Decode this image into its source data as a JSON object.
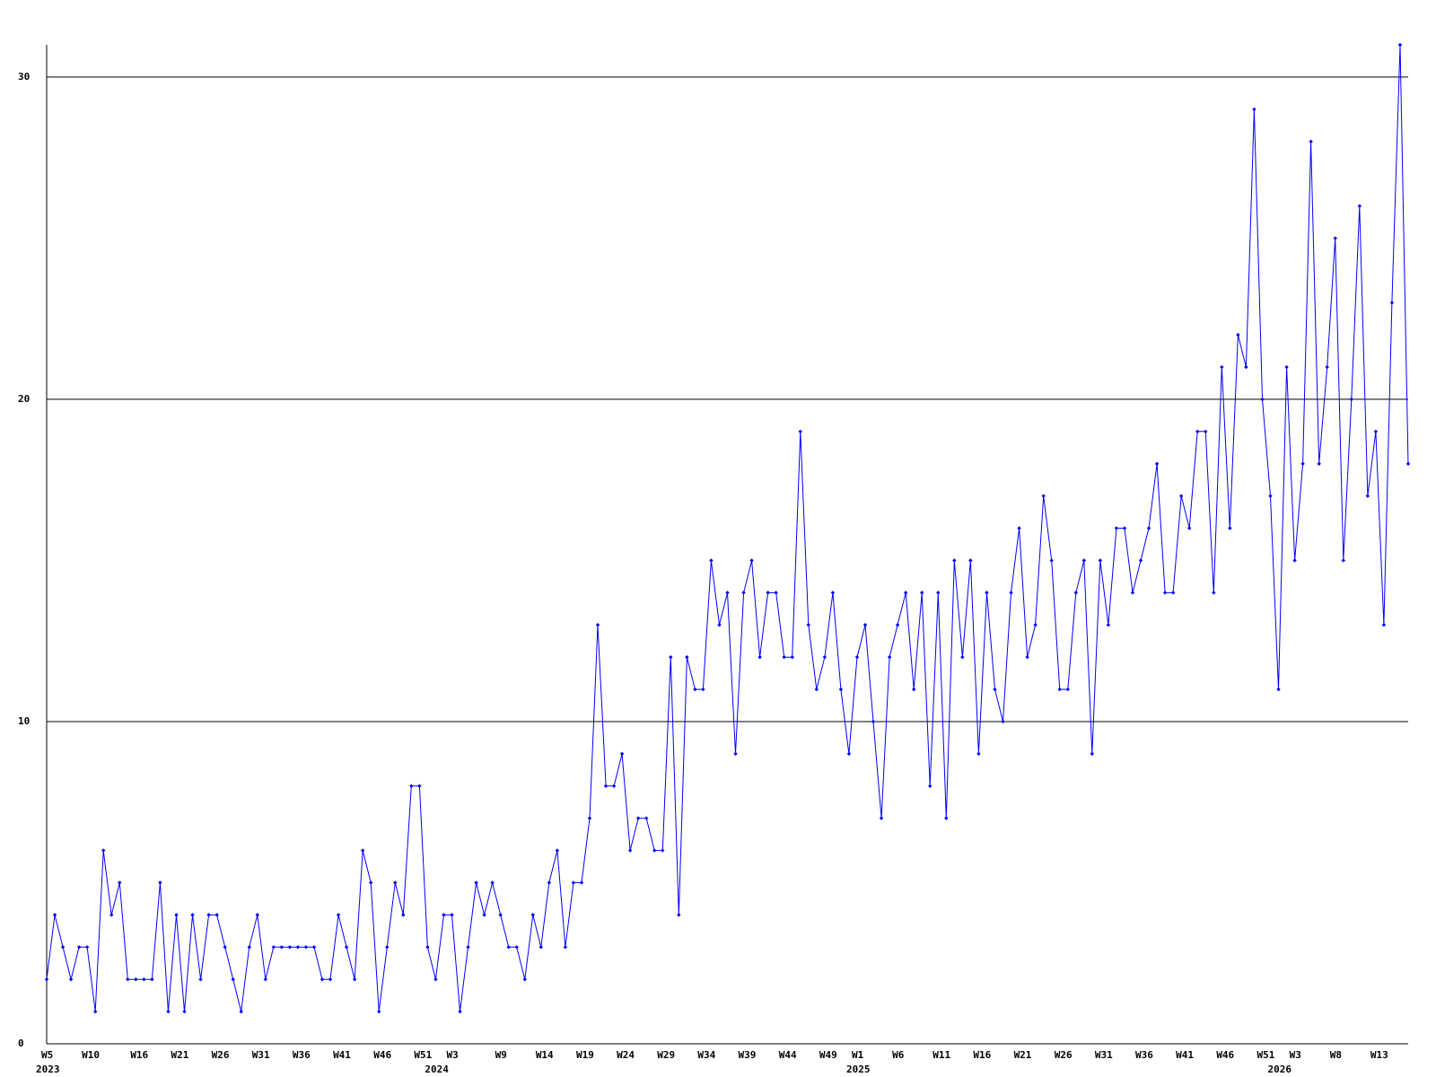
{
  "chart_data": {
    "type": "line",
    "categories": [
      "W5",
      null,
      null,
      null,
      null,
      "W10",
      null,
      null,
      null,
      null,
      null,
      "W16",
      null,
      null,
      null,
      null,
      "W21",
      null,
      null,
      null,
      null,
      "W26",
      null,
      null,
      null,
      null,
      "W31",
      null,
      null,
      null,
      null,
      "W36",
      null,
      null,
      null,
      null,
      "W41",
      null,
      null,
      null,
      null,
      "W46",
      null,
      null,
      null,
      null,
      "W51",
      null,
      null,
      null,
      "W3",
      null,
      null,
      null,
      null,
      null,
      "W9",
      null,
      null,
      null,
      null,
      "W14",
      null,
      null,
      null,
      null,
      "W19",
      null,
      null,
      null,
      null,
      "W24",
      null,
      null,
      null,
      null,
      "W29",
      null,
      null,
      null,
      null,
      "W34",
      null,
      null,
      null,
      null,
      "W39",
      null,
      null,
      null,
      null,
      "W44",
      null,
      null,
      null,
      null,
      "W49",
      null,
      null,
      null,
      "W1",
      null,
      null,
      null,
      null,
      "W6",
      null,
      null,
      null,
      null,
      "W11",
      null,
      null,
      null,
      null,
      "W16",
      null,
      null,
      null,
      null,
      "W21",
      null,
      null,
      null,
      null,
      "W26",
      null,
      null,
      null,
      null,
      "W31",
      null,
      null,
      null,
      null,
      "W36",
      null,
      null,
      null,
      null,
      "W41",
      null,
      null,
      null,
      null,
      "W46",
      null,
      null,
      null,
      null,
      "W51",
      null,
      null,
      null,
      "W3",
      null,
      null,
      null,
      null,
      "W8",
      null,
      null,
      null,
      null,
      "W13",
      null,
      null,
      null,
      null
    ],
    "year_labels": [
      "2023",
      null,
      null,
      null,
      null,
      null,
      null,
      null,
      null,
      null,
      null,
      null,
      null,
      null,
      null,
      null,
      null,
      null,
      null,
      null,
      null,
      null,
      null,
      null,
      null,
      null,
      null,
      null,
      null,
      null,
      null,
      null,
      null,
      null,
      null,
      null,
      null,
      null,
      null,
      null,
      null,
      null,
      null,
      null,
      null,
      null,
      null,
      null,
      "2024",
      null,
      null,
      null,
      null,
      null,
      null,
      null,
      null,
      null,
      null,
      null,
      null,
      null,
      null,
      null,
      null,
      null,
      null,
      null,
      null,
      null,
      null,
      null,
      null,
      null,
      null,
      null,
      null,
      null,
      null,
      null,
      null,
      null,
      null,
      null,
      null,
      null,
      null,
      null,
      null,
      null,
      null,
      null,
      null,
      null,
      null,
      null,
      null,
      null,
      null,
      null,
      "2025",
      null,
      null,
      null,
      null,
      null,
      null,
      null,
      null,
      null,
      null,
      null,
      null,
      null,
      null,
      null,
      null,
      null,
      null,
      null,
      null,
      null,
      null,
      null,
      null,
      null,
      null,
      null,
      null,
      null,
      null,
      null,
      null,
      null,
      null,
      null,
      null,
      null,
      null,
      null,
      null,
      null,
      null,
      null,
      null,
      null,
      null,
      null,
      null,
      null,
      null,
      null,
      "2026",
      null,
      null,
      null,
      null,
      null,
      null,
      null,
      null,
      null,
      null,
      null,
      null,
      null,
      null,
      null
    ],
    "series": [
      {
        "color": "#0000ff",
        "values": [
          2,
          4,
          3,
          2,
          3,
          3,
          1,
          6,
          4,
          5,
          2,
          2,
          2,
          2,
          5,
          1,
          4,
          1,
          4,
          2,
          4,
          4,
          3,
          2,
          1,
          3,
          4,
          2,
          3,
          3,
          3,
          3,
          3,
          3,
          2,
          2,
          4,
          3,
          2,
          6,
          5,
          1,
          3,
          5,
          4,
          8,
          8,
          3,
          2,
          4,
          4,
          1,
          3,
          5,
          4,
          5,
          4,
          3,
          3,
          2,
          4,
          3,
          5,
          6,
          3,
          5,
          5,
          7,
          13,
          8,
          8,
          9,
          6,
          7,
          7,
          6,
          6,
          12,
          4,
          12,
          11,
          11,
          15,
          13,
          14,
          9,
          14,
          15,
          12,
          14,
          14,
          12,
          12,
          19,
          13,
          11,
          12,
          14,
          11,
          9,
          12,
          13,
          10,
          7,
          12,
          13,
          14,
          11,
          14,
          8,
          14,
          7,
          15,
          12,
          15,
          9,
          14,
          11,
          10,
          14,
          16,
          12,
          13,
          17,
          15,
          11,
          11,
          14,
          15,
          9,
          15,
          13,
          16,
          16,
          14,
          15,
          16,
          18,
          14,
          14,
          17,
          16,
          19,
          19,
          14,
          21,
          16,
          22,
          21,
          29,
          20,
          17,
          11,
          21,
          15,
          18,
          28,
          18,
          21,
          25,
          15,
          20,
          26,
          17,
          19,
          13,
          23,
          31,
          18
        ]
      }
    ],
    "ylim": [
      0,
      31
    ],
    "yticks": [
      0,
      10,
      20,
      30
    ],
    "grid": true
  }
}
